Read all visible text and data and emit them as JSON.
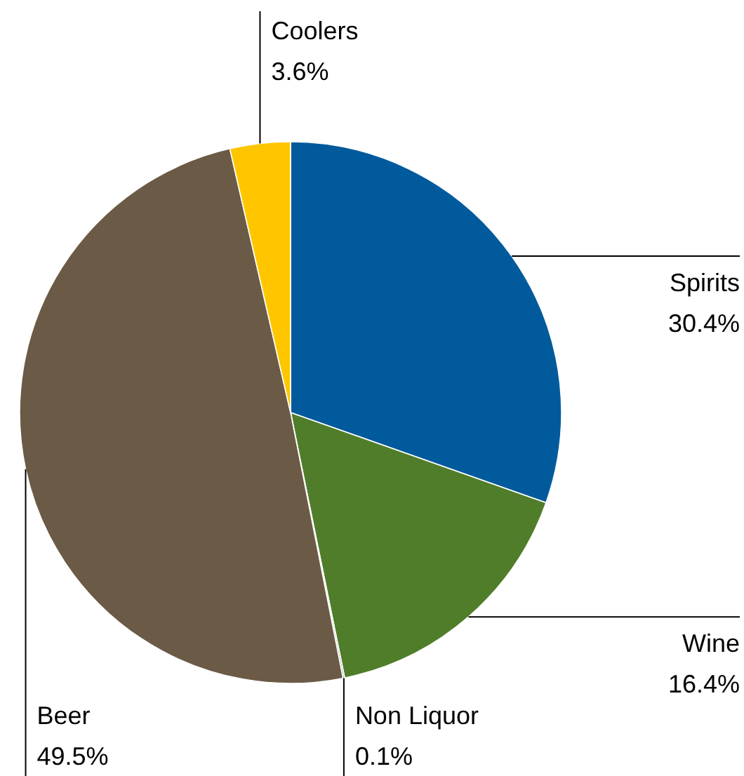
{
  "chart_data": {
    "type": "pie",
    "categories": [
      "Spirits",
      "Wine",
      "Non Liquor",
      "Beer",
      "Coolers"
    ],
    "values": [
      30.4,
      16.4,
      0.1,
      49.5,
      3.6
    ],
    "value_labels": [
      "30.4%",
      "16.4%",
      "0.1%",
      "49.5%",
      "3.6%"
    ],
    "colors": [
      "#005a9c",
      "#507d2a",
      "#9a9a9a",
      "#6b5a45",
      "#ffc600"
    ]
  }
}
